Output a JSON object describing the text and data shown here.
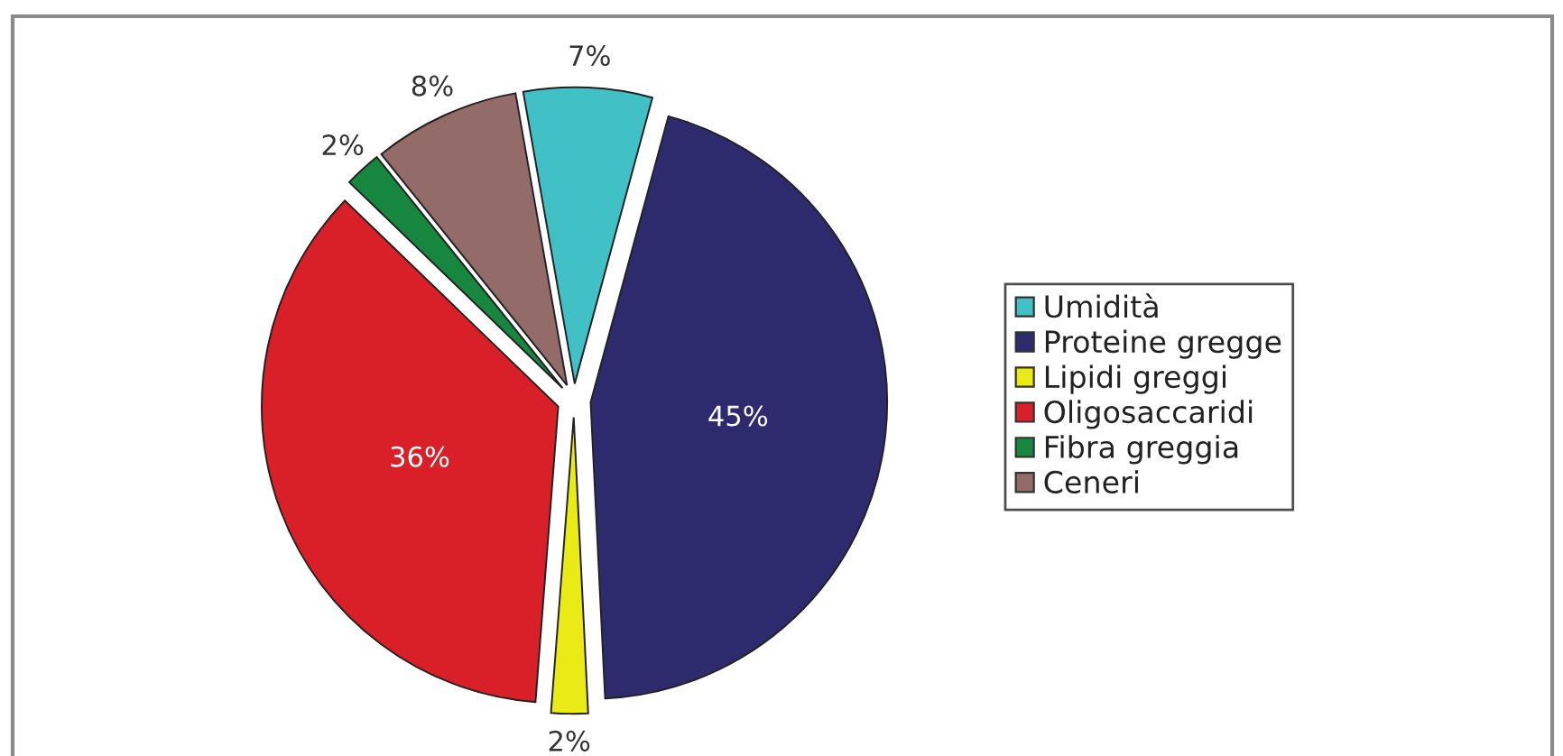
{
  "chart_data": {
    "type": "pie",
    "categories": [
      "Umidità",
      "Proteine gregge",
      "Lipidi greggi",
      "Oligosaccaridi",
      "Fibra greggia",
      "Ceneri"
    ],
    "values": [
      7,
      45,
      2,
      36,
      2,
      8
    ],
    "colors": [
      "#41c0c6",
      "#2d2a6e",
      "#eaea16",
      "#d92028",
      "#17873f",
      "#936b69"
    ],
    "value_labels": [
      "7%",
      "45%",
      "2%",
      "36%",
      "2%",
      "8%"
    ],
    "legend": "right"
  }
}
